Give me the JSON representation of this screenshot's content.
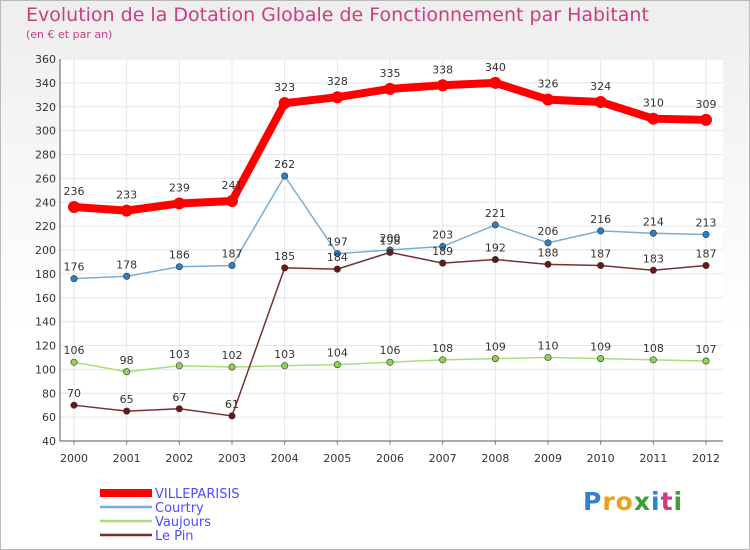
{
  "title": "Evolution de la Dotation Globale de Fonctionnement par Habitant",
  "subtitle": "(en € et par an)",
  "logo": {
    "text": "Proxiti",
    "letters": [
      {
        "ch": "P",
        "color": "#2f80d0"
      },
      {
        "ch": "r",
        "color": "#e8a21a"
      },
      {
        "ch": "o",
        "color": "#e8a21a"
      },
      {
        "ch": "x",
        "color": "#3aa03a"
      },
      {
        "ch": "i",
        "color": "#2f80d0"
      },
      {
        "ch": "t",
        "color": "#cc3d80"
      },
      {
        "ch": "i",
        "color": "#3aa03a"
      }
    ]
  },
  "chart_data": {
    "type": "line",
    "x": [
      "2000",
      "2001",
      "2002",
      "2003",
      "2004",
      "2005",
      "2006",
      "2007",
      "2008",
      "2009",
      "2010",
      "2011",
      "2012"
    ],
    "ylim": [
      40,
      360
    ],
    "yticks": [
      40,
      60,
      80,
      100,
      120,
      140,
      160,
      180,
      200,
      220,
      240,
      260,
      280,
      300,
      320,
      340,
      360
    ],
    "grid": true,
    "legend_position": "bottom-left",
    "series": [
      {
        "name": "VILLEPARISIS",
        "color": "#ff0000",
        "legend_text_color": "#4b4bff",
        "emphasis": true,
        "values": [
          236,
          233,
          239,
          241,
          323,
          328,
          335,
          338,
          340,
          326,
          324,
          310,
          309
        ],
        "labels": [
          "236",
          "233",
          "239",
          "241",
          "323",
          "328",
          "335",
          "338",
          "340",
          "326",
          "324",
          "310",
          "309"
        ]
      },
      {
        "name": "Courtry",
        "color": "#7aaed6",
        "marker_color": "#2d7fc0",
        "legend_text_color": "#4b4bff",
        "values": [
          176,
          178,
          186,
          187,
          262,
          197,
          200,
          203,
          221,
          206,
          216,
          214,
          213
        ],
        "labels": [
          "176",
          "178",
          "186",
          "187",
          "262",
          "197",
          "200",
          "203",
          "221",
          "206",
          "216",
          "214",
          "213"
        ]
      },
      {
        "name": "Vaujours",
        "color": "#a6de7a",
        "marker_color": "#8ad44f",
        "legend_text_color": "#4b4bff",
        "values": [
          106,
          98,
          103,
          102,
          103,
          104,
          106,
          108,
          109,
          110,
          109,
          108,
          107
        ],
        "labels": [
          "106",
          "98",
          "103",
          "102",
          "103",
          "104",
          "106",
          "108",
          "109",
          "110",
          "109",
          "108",
          "107"
        ]
      },
      {
        "name": "Le Pin",
        "color": "#7a2f2f",
        "marker_color": "#6b1717",
        "legend_text_color": "#4b4bff",
        "values": [
          70,
          65,
          67,
          61,
          185,
          184,
          198,
          189,
          192,
          188,
          187,
          183,
          187
        ],
        "labels": [
          "70",
          "65",
          "67",
          "61",
          "185",
          "184",
          "198",
          "189",
          "192",
          "188",
          "187",
          "183",
          "187"
        ]
      }
    ]
  }
}
